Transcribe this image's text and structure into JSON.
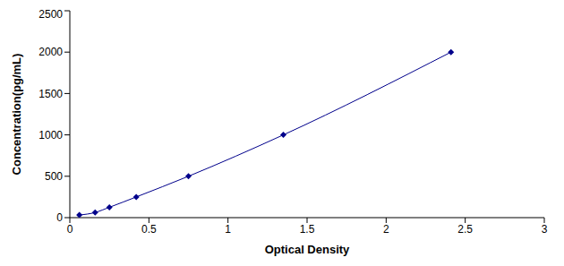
{
  "chart_data": {
    "type": "line",
    "x_label": "Optical Density",
    "y_label": "Concentration(pg/mL)",
    "x": [
      0.06,
      0.16,
      0.25,
      0.42,
      0.75,
      1.35,
      2.41
    ],
    "values": [
      31.25,
      62.5,
      125,
      250,
      500,
      1000,
      2000
    ],
    "color": "#00008b",
    "marker": "diamond",
    "line_style": "solid",
    "xlim": [
      0,
      3
    ],
    "xticks": [
      0,
      0.5,
      1,
      1.5,
      2,
      2.5,
      3
    ],
    "ylim": [
      0,
      2500
    ],
    "yticks": [
      0,
      500,
      1000,
      1500,
      2000,
      2500
    ],
    "grid": false
  }
}
